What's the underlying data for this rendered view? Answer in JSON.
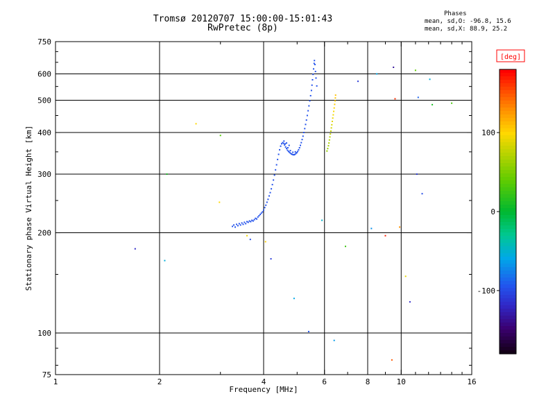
{
  "title": {
    "line1": "Tromsø 20120707 15:00:00-15:01:43",
    "line2": "RwPretec (8p)"
  },
  "stats": {
    "heading": "Phases",
    "line1": "mean, sd,O: -96.8, 15.6",
    "line2": "mean, sd,X: 88.9, 25.2"
  },
  "colors": {
    "background": "#ffffff",
    "frame": "#000000",
    "grid": "#000000",
    "colorbar_label": "#ff0000"
  },
  "chart_data": {
    "type": "scatter",
    "title": "Tromsø 20120707 15:00:00-15:01:43",
    "subtitle": "RwPretec (8p)",
    "xlabel": "Frequency [MHz]",
    "ylabel": "Stationary phase Virtual Height [km]",
    "x_scale": "log",
    "y_scale": "log",
    "xlim": [
      1,
      16
    ],
    "ylim": [
      75,
      750
    ],
    "x_ticks_major": [
      1,
      2,
      4,
      6,
      8,
      10,
      16
    ],
    "x_ticks_minor": [
      3,
      5,
      7,
      9,
      11,
      12,
      13,
      14,
      15
    ],
    "x_grid": [
      2,
      4,
      6,
      8,
      10
    ],
    "y_ticks_major": [
      750,
      600,
      500,
      400,
      300,
      200,
      100,
      75
    ],
    "y_ticks_minor": [
      80,
      90,
      150,
      250,
      350,
      450,
      550,
      650,
      700
    ],
    "y_grid": [
      600,
      500,
      400,
      300,
      200,
      100
    ],
    "colorbar": {
      "label": "[deg]",
      "min": -180,
      "max": 180,
      "ticks": [
        100,
        0,
        -100
      ],
      "stops": [
        [
          -180,
          "#140018"
        ],
        [
          -150,
          "#3a0070"
        ],
        [
          -120,
          "#3028c8"
        ],
        [
          -95,
          "#2255ee"
        ],
        [
          -60,
          "#00a8e8"
        ],
        [
          -30,
          "#00c890"
        ],
        [
          0,
          "#00b830"
        ],
        [
          40,
          "#60cc00"
        ],
        [
          80,
          "#c8d400"
        ],
        [
          100,
          "#ffd800"
        ],
        [
          130,
          "#ff9000"
        ],
        [
          160,
          "#ff3c00"
        ],
        [
          180,
          "#ff0000"
        ]
      ]
    },
    "series": [
      {
        "name": "O-mode trace",
        "mean_phase": -96.8,
        "sd_phase": 15.6,
        "points": [
          [
            3.25,
            209
          ],
          [
            3.28,
            211
          ],
          [
            3.31,
            208
          ],
          [
            3.34,
            212
          ],
          [
            3.37,
            210
          ],
          [
            3.4,
            213
          ],
          [
            3.43,
            211
          ],
          [
            3.46,
            214
          ],
          [
            3.49,
            212
          ],
          [
            3.52,
            215
          ],
          [
            3.55,
            213
          ],
          [
            3.58,
            216
          ],
          [
            3.61,
            215
          ],
          [
            3.64,
            217
          ],
          [
            3.67,
            216
          ],
          [
            3.7,
            218
          ],
          [
            3.73,
            217
          ],
          [
            3.76,
            219
          ],
          [
            3.79,
            221
          ],
          [
            3.82,
            220
          ],
          [
            3.85,
            223
          ],
          [
            3.88,
            225
          ],
          [
            3.91,
            227
          ],
          [
            3.94,
            229
          ],
          [
            3.97,
            231
          ],
          [
            4.0,
            234
          ],
          [
            4.03,
            238
          ],
          [
            4.06,
            242
          ],
          [
            4.09,
            247
          ],
          [
            4.12,
            252
          ],
          [
            4.15,
            258
          ],
          [
            4.18,
            264
          ],
          [
            4.21,
            271
          ],
          [
            4.24,
            279
          ],
          [
            4.27,
            288
          ],
          [
            4.3,
            298
          ],
          [
            4.33,
            309
          ],
          [
            4.36,
            320
          ],
          [
            4.39,
            332
          ],
          [
            4.42,
            344
          ],
          [
            4.45,
            355
          ],
          [
            4.48,
            364
          ],
          [
            4.51,
            370
          ],
          [
            4.54,
            373
          ],
          [
            4.57,
            371
          ],
          [
            4.58,
            377
          ],
          [
            4.6,
            367
          ],
          [
            4.62,
            370
          ],
          [
            4.63,
            362
          ],
          [
            4.66,
            372
          ],
          [
            4.66,
            358
          ],
          [
            4.69,
            354
          ],
          [
            4.7,
            360
          ],
          [
            4.72,
            351
          ],
          [
            4.74,
            366
          ],
          [
            4.75,
            349
          ],
          [
            4.78,
            347
          ],
          [
            4.78,
            353
          ],
          [
            4.81,
            345
          ],
          [
            4.84,
            344
          ],
          [
            4.86,
            349
          ],
          [
            4.87,
            343
          ],
          [
            4.9,
            343
          ],
          [
            4.93,
            344
          ],
          [
            4.94,
            350
          ],
          [
            4.96,
            346
          ],
          [
            4.99,
            348
          ],
          [
            5.02,
            351
          ],
          [
            5.05,
            355
          ],
          [
            5.08,
            360
          ],
          [
            5.11,
            366
          ],
          [
            5.14,
            373
          ],
          [
            5.17,
            381
          ],
          [
            5.2,
            390
          ],
          [
            5.23,
            400
          ],
          [
            5.26,
            411
          ],
          [
            5.29,
            423
          ],
          [
            5.32,
            436
          ],
          [
            5.35,
            450
          ],
          [
            5.38,
            465
          ],
          [
            5.41,
            481
          ],
          [
            5.44,
            498
          ],
          [
            5.47,
            516
          ],
          [
            5.5,
            535
          ],
          [
            5.52,
            555
          ],
          [
            5.54,
            576
          ],
          [
            5.56,
            598
          ],
          [
            5.58,
            621
          ],
          [
            5.6,
            645
          ],
          [
            5.61,
            658
          ],
          [
            5.63,
            640
          ],
          [
            5.65,
            610
          ],
          [
            5.67,
            583
          ],
          [
            5.7,
            552
          ]
        ]
      },
      {
        "name": "X-mode trace",
        "mean_phase": 88.9,
        "sd_phase": 25.2,
        "points": [
          [
            6.1,
            352,
            60
          ],
          [
            6.13,
            358,
            63
          ],
          [
            6.16,
            365,
            66
          ],
          [
            6.18,
            372,
            69
          ],
          [
            6.2,
            380,
            72
          ],
          [
            6.22,
            388,
            75
          ],
          [
            6.24,
            396,
            78
          ],
          [
            6.26,
            404,
            80
          ],
          [
            6.28,
            413,
            83
          ],
          [
            6.3,
            422,
            86
          ],
          [
            6.32,
            432,
            89
          ],
          [
            6.34,
            442,
            92
          ],
          [
            6.36,
            452,
            95
          ],
          [
            6.38,
            463,
            98
          ],
          [
            6.4,
            474,
            101
          ],
          [
            6.42,
            486,
            104
          ],
          [
            6.44,
            498,
            106
          ],
          [
            6.45,
            508,
            108
          ],
          [
            6.46,
            518,
            110
          ]
        ]
      }
    ],
    "scatter_points": [
      [
        1.7,
        179,
        -120
      ],
      [
        2.07,
        165,
        -55
      ],
      [
        2.1,
        300,
        10
      ],
      [
        2.55,
        425,
        100
      ],
      [
        2.98,
        247,
        100
      ],
      [
        3.0,
        392,
        35
      ],
      [
        3.58,
        196,
        95
      ],
      [
        3.66,
        191,
        -100
      ],
      [
        4.05,
        188,
        105
      ],
      [
        4.2,
        167,
        -110
      ],
      [
        4.9,
        127,
        -60
      ],
      [
        5.4,
        101,
        -95
      ],
      [
        5.9,
        218,
        -50
      ],
      [
        6.4,
        95,
        -65
      ],
      [
        6.9,
        182,
        25
      ],
      [
        7.5,
        570,
        -110
      ],
      [
        8.2,
        206,
        -70
      ],
      [
        8.5,
        600,
        -60
      ],
      [
        9.0,
        196,
        170
      ],
      [
        9.4,
        83,
        150
      ],
      [
        9.5,
        628,
        -135
      ],
      [
        9.6,
        505,
        165
      ],
      [
        9.9,
        208,
        130
      ],
      [
        10.3,
        148,
        90
      ],
      [
        10.6,
        124,
        -120
      ],
      [
        11.0,
        615,
        40
      ],
      [
        11.1,
        300,
        -110
      ],
      [
        11.2,
        510,
        -90
      ],
      [
        11.5,
        262,
        -100
      ],
      [
        12.1,
        578,
        -55
      ],
      [
        12.3,
        485,
        10
      ],
      [
        14.0,
        490,
        30
      ]
    ]
  }
}
